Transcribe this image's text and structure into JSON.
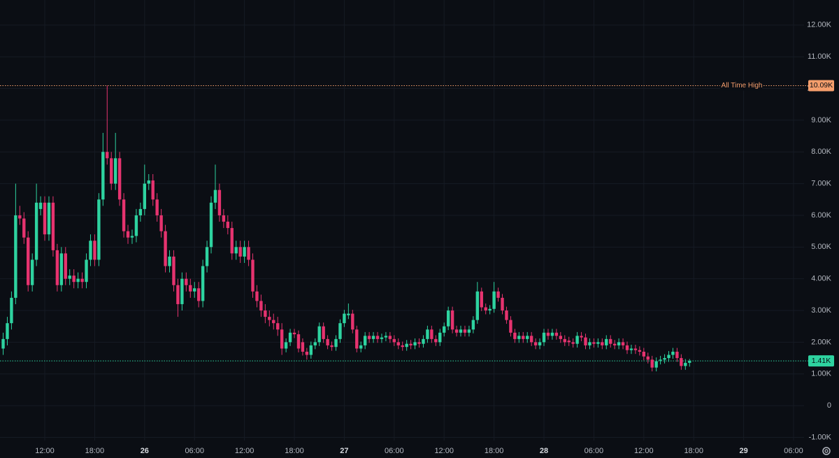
{
  "chart_data": {
    "type": "candlestick",
    "up_color": "#2ed3a0",
    "down_color": "#e6336f",
    "grid": true,
    "xlim": [
      6.62,
      103.26
    ],
    "ylim": [
      -1100,
      12790
    ],
    "xticks": [
      {
        "value": 12,
        "label": "12:00"
      },
      {
        "value": 18,
        "label": "18:00"
      },
      {
        "value": 24,
        "label": "26"
      },
      {
        "value": 30,
        "label": "06:00"
      },
      {
        "value": 36,
        "label": "12:00"
      },
      {
        "value": 42,
        "label": "18:00"
      },
      {
        "value": 48,
        "label": "27"
      },
      {
        "value": 54,
        "label": "06:00"
      },
      {
        "value": 60,
        "label": "12:00"
      },
      {
        "value": 66,
        "label": "18:00"
      },
      {
        "value": 72,
        "label": "28"
      },
      {
        "value": 78,
        "label": "06:00"
      },
      {
        "value": 84,
        "label": "12:00"
      },
      {
        "value": 90,
        "label": "18:00"
      },
      {
        "value": 96,
        "label": "29"
      },
      {
        "value": 102,
        "label": "06:00"
      }
    ],
    "yticks": [
      {
        "value": -1000,
        "label": "-1.00K"
      },
      0,
      {
        "value": 1000,
        "label": "1.00K"
      },
      {
        "value": 2000,
        "label": "2.00K"
      },
      {
        "value": 3000,
        "label": "3.00K"
      },
      {
        "value": 4000,
        "label": "4.00K"
      },
      {
        "value": 5000,
        "label": "5.00K"
      },
      {
        "value": 6000,
        "label": "6.00K"
      },
      {
        "value": 7000,
        "label": "7.00K"
      },
      {
        "value": 8000,
        "label": "8.00K"
      },
      {
        "value": 9000,
        "label": "9.00K"
      },
      {
        "value": 10000,
        "label": "10.00K"
      },
      {
        "value": 11000,
        "label": "11.00K"
      },
      {
        "value": 12000,
        "label": "12.00K"
      }
    ],
    "price_lines": [
      {
        "name": "All Time High",
        "value": 10090,
        "label": "10.09K",
        "color": "#f59e6c"
      },
      {
        "value": 1410,
        "label": "1.41K",
        "color": "#2ed3a0"
      }
    ],
    "x": [
      7,
      7.5,
      8,
      8.5,
      9,
      9.5,
      10,
      10.5,
      11,
      11.5,
      12,
      12.5,
      13,
      13.5,
      14,
      14.5,
      15,
      15.5,
      16,
      16.5,
      17,
      17.5,
      18,
      18.5,
      19,
      19.5,
      20,
      20.5,
      21,
      21.5,
      22,
      22.5,
      23,
      23.5,
      24,
      24.5,
      25,
      25.5,
      26,
      26.5,
      27,
      27.5,
      28,
      28.5,
      29,
      29.5,
      30,
      30.5,
      31,
      31.5,
      32,
      32.5,
      33,
      33.5,
      34,
      34.5,
      35,
      35.5,
      36,
      36.5,
      37,
      37.5,
      38,
      38.5,
      39,
      39.5,
      40,
      40.5,
      41,
      41.5,
      42,
      42.5,
      43,
      43.5,
      44,
      44.5,
      45,
      45.5,
      46,
      46.5,
      47,
      47.5,
      48,
      48.5,
      49,
      49.5,
      50,
      50.5,
      51,
      51.5,
      52,
      52.5,
      53,
      53.5,
      54,
      54.5,
      55,
      55.5,
      56,
      56.5,
      57,
      57.5,
      58,
      58.5,
      59,
      59.5,
      60,
      60.5,
      61,
      61.5,
      62,
      62.5,
      63,
      63.5,
      64,
      64.5,
      65,
      65.5,
      66,
      66.5,
      67,
      67.5,
      68,
      68.5,
      69,
      69.5,
      70,
      70.5,
      71,
      71.5,
      72,
      72.5,
      73,
      73.5,
      74,
      74.5,
      75,
      75.5,
      76,
      76.5,
      77,
      77.5,
      78,
      78.5,
      79,
      79.5,
      80,
      80.5,
      81,
      81.5,
      82,
      82.5,
      83,
      83.5,
      84,
      84.5,
      85,
      85.5,
      86,
      86.5,
      87,
      87.5,
      88,
      88.5,
      89,
      89.5
    ],
    "open": [
      1800,
      2100,
      2600,
      3400,
      6000,
      5900,
      5300,
      3800,
      4600,
      6200,
      6400,
      5400,
      6400,
      4900,
      3800,
      4800,
      4000,
      4100,
      3900,
      4000,
      3900,
      4600,
      5200,
      4600,
      6500,
      8000,
      7800,
      7000,
      7800,
      6500,
      5500,
      5300,
      5350,
      6000,
      6200,
      7000,
      7100,
      6500,
      6000,
      5500,
      4400,
      4700,
      3800,
      3200,
      4000,
      3800,
      3600,
      3700,
      3300,
      4400,
      5000,
      6400,
      6800,
      6000,
      5800,
      5600,
      4800,
      5000,
      4700,
      5000,
      4600,
      3600,
      3300,
      3000,
      2800,
      2700,
      2600,
      2400,
      1800,
      2000,
      2300,
      2250,
      2000,
      1700,
      1600,
      1900,
      2000,
      2500,
      2100,
      1900,
      1850,
      2100,
      2600,
      2850,
      2900,
      2400,
      1800,
      1900,
      2200,
      2100,
      2200,
      2100,
      2150,
      2200,
      2100,
      2000,
      1900,
      1850,
      1950,
      1900,
      2000,
      1950,
      2100,
      2400,
      2100,
      2000,
      2300,
      2500,
      3000,
      2400,
      2300,
      2400,
      2300,
      2400,
      2700,
      3600,
      3100,
      3000,
      3050,
      3600,
      3400,
      3000,
      2700,
      2300,
      2100,
      2200,
      2100,
      2200,
      2000,
      1900,
      2000,
      2300,
      2200,
      2300,
      2200,
      2100,
      2050,
      2000,
      1950,
      2200,
      2150,
      1900,
      2000,
      1950,
      2000,
      1900,
      2100,
      1950,
      1900,
      2000,
      1900,
      1750,
      1800,
      1750,
      1700,
      1550,
      1450,
      1200,
      1420,
      1450,
      1500,
      1600,
      1700,
      1500,
      1250,
      1350
    ],
    "high": [
      2300,
      2800,
      3600,
      7000,
      6300,
      6100,
      5500,
      4800,
      7000,
      6600,
      6600,
      6600,
      6600,
      5100,
      5000,
      5000,
      4300,
      4300,
      4200,
      4200,
      4800,
      5400,
      5400,
      6700,
      8600,
      10090,
      8000,
      8600,
      8000,
      6700,
      5700,
      5550,
      6200,
      6400,
      7600,
      7300,
      7300,
      6700,
      6200,
      5700,
      4900,
      4900,
      4000,
      4200,
      4200,
      4000,
      3900,
      3900,
      4600,
      5200,
      6600,
      7600,
      7000,
      6200,
      6000,
      5800,
      5200,
      5200,
      5200,
      5200,
      4800,
      3800,
      3500,
      3200,
      3000,
      2900,
      2800,
      2600,
      2120,
      2420,
      2420,
      2370,
      2120,
      1820,
      2020,
      2120,
      2620,
      2620,
      2220,
      2020,
      2220,
      2720,
      3020,
      3220,
      3020,
      2520,
      2020,
      2320,
      2320,
      2320,
      2320,
      2270,
      2320,
      2320,
      2220,
      2120,
      2020,
      2070,
      2070,
      2120,
      2120,
      2220,
      2520,
      2520,
      2220,
      2420,
      2620,
      3120,
      3120,
      2520,
      2520,
      2520,
      2520,
      2820,
      3900,
      3720,
      3220,
      3170,
      3900,
      3720,
      3520,
      3120,
      2820,
      2420,
      2320,
      2320,
      2320,
      2320,
      2120,
      2120,
      2420,
      2420,
      2420,
      2420,
      2320,
      2220,
      2170,
      2120,
      2320,
      2320,
      2270,
      2120,
      2120,
      2120,
      2120,
      2220,
      2220,
      2070,
      2120,
      2120,
      2020,
      1920,
      1920,
      1870,
      1820,
      1670,
      1570,
      1520,
      1570,
      1620,
      1720,
      1820,
      1820,
      1620,
      1470,
      1470
    ],
    "low": [
      1600,
      1900,
      2400,
      3200,
      5700,
      5100,
      3600,
      3600,
      4400,
      6000,
      5200,
      5200,
      4700,
      3600,
      3600,
      3800,
      3800,
      3700,
      3700,
      3700,
      3700,
      4400,
      4400,
      4400,
      6300,
      7600,
      6800,
      6800,
      6300,
      5300,
      5100,
      5100,
      5150,
      5800,
      6000,
      6800,
      6300,
      5800,
      5300,
      4200,
      4200,
      3600,
      2800,
      3000,
      3600,
      3400,
      3400,
      3100,
      3100,
      4200,
      4800,
      6200,
      5800,
      5600,
      5400,
      4600,
      4600,
      4500,
      4500,
      4400,
      3400,
      3100,
      2800,
      2600,
      2500,
      2400,
      2200,
      1600,
      1680,
      1880,
      2130,
      1680,
      1580,
      1450,
      1480,
      1780,
      1880,
      1980,
      1780,
      1730,
      1730,
      1980,
      2480,
      2730,
      2280,
      1680,
      1680,
      1780,
      1980,
      1980,
      1980,
      1980,
      2030,
      1980,
      1880,
      1780,
      1730,
      1730,
      1780,
      1780,
      1830,
      1830,
      1980,
      1980,
      1880,
      1880,
      2180,
      2380,
      2280,
      2180,
      2180,
      2180,
      2180,
      2280,
      2580,
      2980,
      2880,
      2880,
      2930,
      3280,
      2880,
      2580,
      2180,
      1980,
      1980,
      1980,
      1980,
      1880,
      1780,
      1780,
      1880,
      2080,
      2080,
      2080,
      1980,
      1880,
      1880,
      1830,
      1830,
      2030,
      1780,
      1780,
      1830,
      1830,
      1780,
      1780,
      1830,
      1780,
      1780,
      1780,
      1630,
      1630,
      1630,
      1580,
      1430,
      1330,
      1080,
      1080,
      1300,
      1330,
      1380,
      1480,
      1380,
      1130,
      1130,
      1230
    ],
    "close": [
      2100,
      2600,
      3400,
      6000,
      5900,
      5300,
      3800,
      4600,
      6400,
      6400,
      5400,
      6400,
      4900,
      3800,
      4800,
      4000,
      4100,
      3900,
      4000,
      3900,
      4600,
      5200,
      4600,
      6500,
      8000,
      7800,
      7000,
      7800,
      6500,
      5500,
      5300,
      5350,
      6000,
      6200,
      7000,
      7100,
      6500,
      6000,
      5500,
      4400,
      4700,
      3800,
      3200,
      4000,
      3800,
      3600,
      3700,
      3300,
      4400,
      5000,
      6400,
      6800,
      6000,
      5800,
      5600,
      4800,
      5000,
      4700,
      5000,
      4600,
      3600,
      3300,
      3000,
      2800,
      2700,
      2600,
      2400,
      1800,
      2000,
      2300,
      2250,
      1800,
      1700,
      1600,
      1900,
      2000,
      2500,
      2100,
      1900,
      1850,
      2100,
      2600,
      2900,
      2900,
      2400,
      1800,
      1900,
      2200,
      2100,
      2200,
      2100,
      2150,
      2200,
      2100,
      2000,
      1900,
      1850,
      1950,
      1900,
      2000,
      1950,
      2100,
      2400,
      2100,
      2000,
      2300,
      2500,
      3000,
      2400,
      2300,
      2400,
      2300,
      2400,
      2700,
      3600,
      3100,
      3000,
      3050,
      3600,
      3400,
      3000,
      2700,
      2300,
      2100,
      2200,
      2100,
      2200,
      2000,
      1900,
      2000,
      2300,
      2200,
      2300,
      2200,
      2100,
      2000,
      2000,
      1950,
      2200,
      2150,
      1900,
      2000,
      1950,
      2000,
      1900,
      2100,
      1950,
      1900,
      2000,
      1900,
      1750,
      1800,
      1750,
      1700,
      1550,
      1450,
      1200,
      1400,
      1450,
      1500,
      1600,
      1700,
      1500,
      1250,
      1350,
      1410
    ]
  }
}
